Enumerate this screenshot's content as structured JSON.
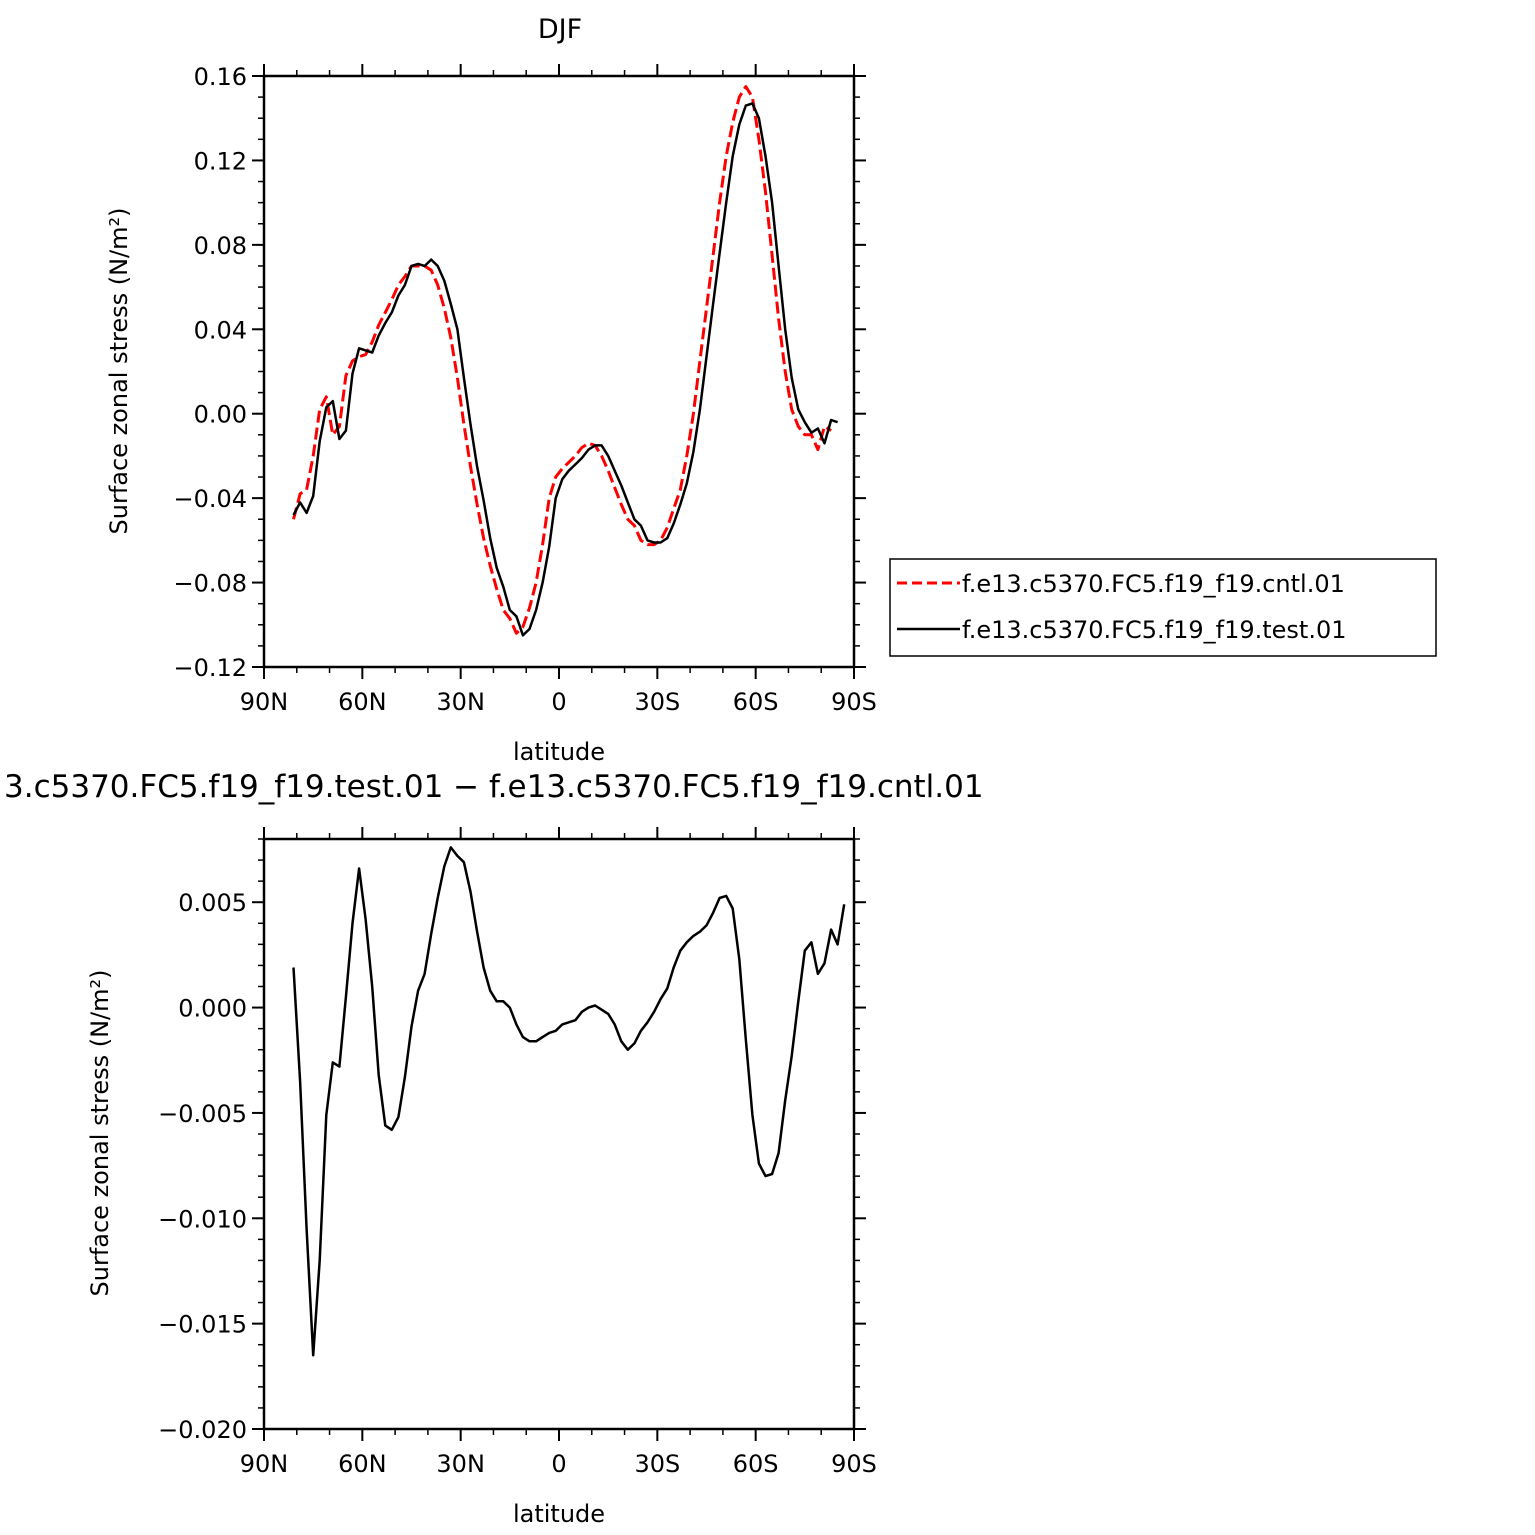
{
  "chart_data": [
    {
      "type": "line",
      "title": "DJF",
      "xlabel": "latitude",
      "ylabel": "Surface zonal stress (N/m²)",
      "xlim": [
        90,
        -90
      ],
      "ylim": [
        -0.12,
        0.16
      ],
      "x_ticks": [
        90,
        60,
        30,
        0,
        -30,
        -60,
        -90
      ],
      "x_tick_labels": [
        "90N",
        "60N",
        "30N",
        "0",
        "30S",
        "60S",
        "90S"
      ],
      "y_ticks": [
        -0.12,
        -0.08,
        -0.04,
        0.0,
        0.04,
        0.08,
        0.12,
        0.16
      ],
      "y_tick_labels": [
        "−0.12",
        "−0.08",
        "−0.04",
        "0.00",
        "0.04",
        "0.08",
        "0.12",
        "0.16"
      ],
      "legend_position": "right",
      "series": [
        {
          "name": "f.e13.c5370.FC5.f19_f19.cntl.01",
          "color": "#ff0000",
          "dash": "dashed",
          "points": [
            [
              81,
              -0.05
            ],
            [
              79,
              -0.038
            ],
            [
              77,
              -0.036
            ],
            [
              75,
              -0.02
            ],
            [
              73,
              0.002
            ],
            [
              71,
              0.008
            ],
            [
              69,
              -0.01
            ],
            [
              67,
              -0.006
            ],
            [
              65,
              0.018
            ],
            [
              63,
              0.025
            ],
            [
              61,
              0.027
            ],
            [
              59,
              0.028
            ],
            [
              57,
              0.034
            ],
            [
              55,
              0.042
            ],
            [
              53,
              0.048
            ],
            [
              51,
              0.054
            ],
            [
              49,
              0.061
            ],
            [
              47,
              0.065
            ],
            [
              45,
              0.07
            ],
            [
              43,
              0.07
            ],
            [
              41,
              0.07
            ],
            [
              39,
              0.068
            ],
            [
              37,
              0.061
            ],
            [
              35,
              0.05
            ],
            [
              33,
              0.036
            ],
            [
              31,
              0.017
            ],
            [
              29,
              -0.005
            ],
            [
              27,
              -0.025
            ],
            [
              25,
              -0.043
            ],
            [
              23,
              -0.059
            ],
            [
              21,
              -0.072
            ],
            [
              19,
              -0.083
            ],
            [
              17,
              -0.093
            ],
            [
              15,
              -0.097
            ],
            [
              13,
              -0.104
            ],
            [
              11,
              -0.101
            ],
            [
              9,
              -0.092
            ],
            [
              7,
              -0.08
            ],
            [
              5,
              -0.062
            ],
            [
              3,
              -0.04
            ],
            [
              1,
              -0.03
            ],
            [
              -1,
              -0.026
            ],
            [
              -3,
              -0.023
            ],
            [
              -5,
              -0.02
            ],
            [
              -7,
              -0.016
            ],
            [
              -9,
              -0.014
            ],
            [
              -11,
              -0.015
            ],
            [
              -13,
              -0.02
            ],
            [
              -15,
              -0.027
            ],
            [
              -17,
              -0.035
            ],
            [
              -19,
              -0.043
            ],
            [
              -21,
              -0.05
            ],
            [
              -23,
              -0.053
            ],
            [
              -25,
              -0.06
            ],
            [
              -27,
              -0.062
            ],
            [
              -29,
              -0.062
            ],
            [
              -31,
              -0.06
            ],
            [
              -33,
              -0.054
            ],
            [
              -35,
              -0.045
            ],
            [
              -37,
              -0.036
            ],
            [
              -39,
              -0.02
            ],
            [
              -41,
              0.0
            ],
            [
              -43,
              0.025
            ],
            [
              -45,
              0.05
            ],
            [
              -47,
              0.075
            ],
            [
              -49,
              0.1
            ],
            [
              -51,
              0.122
            ],
            [
              -53,
              0.138
            ],
            [
              -55,
              0.15
            ],
            [
              -57,
              0.155
            ],
            [
              -59,
              0.15
            ],
            [
              -61,
              0.13
            ],
            [
              -63,
              0.105
            ],
            [
              -65,
              0.075
            ],
            [
              -67,
              0.045
            ],
            [
              -69,
              0.02
            ],
            [
              -71,
              0.002
            ],
            [
              -73,
              -0.006
            ],
            [
              -75,
              -0.01
            ],
            [
              -77,
              -0.01
            ],
            [
              -79,
              -0.017
            ],
            [
              -81,
              -0.006
            ],
            [
              -83,
              -0.008
            ]
          ]
        },
        {
          "name": "f.e13.c5370.FC5.f19_f19.test.01",
          "color": "#000000",
          "dash": "solid",
          "points": [
            [
              81,
              -0.048
            ],
            [
              79,
              -0.042
            ],
            [
              77,
              -0.047
            ],
            [
              75,
              -0.039
            ],
            [
              73,
              -0.013
            ],
            [
              71,
              0.003
            ],
            [
              69,
              0.006
            ],
            [
              67,
              -0.012
            ],
            [
              65,
              -0.008
            ],
            [
              63,
              0.019
            ],
            [
              61,
              0.031
            ],
            [
              59,
              0.03
            ],
            [
              57,
              0.029
            ],
            [
              55,
              0.037
            ],
            [
              53,
              0.043
            ],
            [
              51,
              0.048
            ],
            [
              49,
              0.056
            ],
            [
              47,
              0.061
            ],
            [
              45,
              0.07
            ],
            [
              43,
              0.071
            ],
            [
              41,
              0.07
            ],
            [
              39,
              0.073
            ],
            [
              37,
              0.07
            ],
            [
              35,
              0.063
            ],
            [
              33,
              0.052
            ],
            [
              31,
              0.04
            ],
            [
              29,
              0.017
            ],
            [
              27,
              -0.005
            ],
            [
              25,
              -0.025
            ],
            [
              23,
              -0.041
            ],
            [
              21,
              -0.059
            ],
            [
              19,
              -0.073
            ],
            [
              17,
              -0.082
            ],
            [
              15,
              -0.093
            ],
            [
              13,
              -0.096
            ],
            [
              11,
              -0.105
            ],
            [
              9,
              -0.102
            ],
            [
              7,
              -0.093
            ],
            [
              5,
              -0.08
            ],
            [
              3,
              -0.063
            ],
            [
              1,
              -0.04
            ],
            [
              -1,
              -0.031
            ],
            [
              -3,
              -0.027
            ],
            [
              -5,
              -0.024
            ],
            [
              -7,
              -0.021
            ],
            [
              -9,
              -0.017
            ],
            [
              -11,
              -0.015
            ],
            [
              -13,
              -0.015
            ],
            [
              -15,
              -0.02
            ],
            [
              -17,
              -0.027
            ],
            [
              -19,
              -0.034
            ],
            [
              -21,
              -0.042
            ],
            [
              -23,
              -0.05
            ],
            [
              -25,
              -0.053
            ],
            [
              -27,
              -0.06
            ],
            [
              -29,
              -0.061
            ],
            [
              -31,
              -0.061
            ],
            [
              -33,
              -0.059
            ],
            [
              -35,
              -0.052
            ],
            [
              -37,
              -0.043
            ],
            [
              -39,
              -0.033
            ],
            [
              -41,
              -0.018
            ],
            [
              -43,
              0.002
            ],
            [
              -45,
              0.027
            ],
            [
              -47,
              0.052
            ],
            [
              -49,
              0.076
            ],
            [
              -51,
              0.1
            ],
            [
              -53,
              0.122
            ],
            [
              -55,
              0.137
            ],
            [
              -57,
              0.146
            ],
            [
              -59,
              0.147
            ],
            [
              -61,
              0.14
            ],
            [
              -63,
              0.122
            ],
            [
              -65,
              0.1
            ],
            [
              -67,
              0.07
            ],
            [
              -69,
              0.04
            ],
            [
              -71,
              0.017
            ],
            [
              -73,
              0.002
            ],
            [
              -75,
              -0.004
            ],
            [
              -77,
              -0.009
            ],
            [
              -79,
              -0.007
            ],
            [
              -81,
              -0.014
            ],
            [
              -83,
              -0.003
            ],
            [
              -85,
              -0.004
            ]
          ]
        }
      ]
    },
    {
      "type": "line",
      "title": "3.c5370.FC5.f19_f19.test.01  −  f.e13.c5370.FC5.f19_f19.cntl.01",
      "xlabel": "latitude",
      "ylabel": "Surface zonal stress (N/m²)",
      "xlim": [
        90,
        -90
      ],
      "ylim": [
        -0.02,
        0.008
      ],
      "x_ticks": [
        90,
        60,
        30,
        0,
        -30,
        -60,
        -90
      ],
      "x_tick_labels": [
        "90N",
        "60N",
        "30N",
        "0",
        "30S",
        "60S",
        "90S"
      ],
      "y_ticks": [
        -0.02,
        -0.015,
        -0.01,
        -0.005,
        0.0,
        0.005
      ],
      "y_tick_labels": [
        "−0.020",
        "−0.015",
        "−0.010",
        "−0.005",
        "0.000",
        "0.005"
      ],
      "series": [
        {
          "color": "#000000",
          "dash": "solid",
          "points": [
            [
              81,
              0.0019
            ],
            [
              79,
              -0.0035
            ],
            [
              77,
              -0.0105
            ],
            [
              75,
              -0.0165
            ],
            [
              73,
              -0.012
            ],
            [
              71,
              -0.0051
            ],
            [
              69,
              -0.0026
            ],
            [
              67,
              -0.0028
            ],
            [
              65,
              0.0005
            ],
            [
              63,
              0.004
            ],
            [
              61,
              0.0066
            ],
            [
              59,
              0.0042
            ],
            [
              57,
              0.001
            ],
            [
              55,
              -0.0032
            ],
            [
              53,
              -0.0056
            ],
            [
              51,
              -0.0058
            ],
            [
              49,
              -0.0052
            ],
            [
              47,
              -0.0033
            ],
            [
              45,
              -0.0009
            ],
            [
              43,
              0.0008
            ],
            [
              41,
              0.0016
            ],
            [
              39,
              0.0035
            ],
            [
              37,
              0.0052
            ],
            [
              35,
              0.0067
            ],
            [
              33,
              0.0076
            ],
            [
              31,
              0.0072
            ],
            [
              29,
              0.0069
            ],
            [
              27,
              0.0055
            ],
            [
              25,
              0.0036
            ],
            [
              23,
              0.0019
            ],
            [
              21,
              0.0008
            ],
            [
              19,
              0.0003
            ],
            [
              17,
              0.0003
            ],
            [
              15,
              0.0
            ],
            [
              13,
              -0.0008
            ],
            [
              11,
              -0.0014
            ],
            [
              9,
              -0.0016
            ],
            [
              7,
              -0.0016
            ],
            [
              5,
              -0.0014
            ],
            [
              3,
              -0.0012
            ],
            [
              1,
              -0.0011
            ],
            [
              -1,
              -0.0008
            ],
            [
              -3,
              -0.0007
            ],
            [
              -5,
              -0.0006
            ],
            [
              -7,
              -0.0002
            ],
            [
              -9,
              0.0
            ],
            [
              -11,
              0.0001
            ],
            [
              -13,
              -0.0001
            ],
            [
              -15,
              -0.0003
            ],
            [
              -17,
              -0.0008
            ],
            [
              -19,
              -0.0016
            ],
            [
              -21,
              -0.002
            ],
            [
              -23,
              -0.0017
            ],
            [
              -25,
              -0.0011
            ],
            [
              -27,
              -0.0007
            ],
            [
              -29,
              -0.0002
            ],
            [
              -31,
              0.0004
            ],
            [
              -33,
              0.0009
            ],
            [
              -35,
              0.0019
            ],
            [
              -37,
              0.0027
            ],
            [
              -39,
              0.0031
            ],
            [
              -41,
              0.0034
            ],
            [
              -43,
              0.0036
            ],
            [
              -45,
              0.0039
            ],
            [
              -47,
              0.0045
            ],
            [
              -49,
              0.0052
            ],
            [
              -51,
              0.0053
            ],
            [
              -53,
              0.0047
            ],
            [
              -55,
              0.0023
            ],
            [
              -57,
              -0.0015
            ],
            [
              -59,
              -0.0051
            ],
            [
              -61,
              -0.0074
            ],
            [
              -63,
              -0.008
            ],
            [
              -65,
              -0.0079
            ],
            [
              -67,
              -0.0069
            ],
            [
              -69,
              -0.0044
            ],
            [
              -71,
              -0.0023
            ],
            [
              -73,
              0.0003
            ],
            [
              -75,
              0.0027
            ],
            [
              -77,
              0.0031
            ],
            [
              -79,
              0.0016
            ],
            [
              -81,
              0.0021
            ],
            [
              -83,
              0.0037
            ],
            [
              -85,
              0.003
            ],
            [
              -87,
              0.0049
            ]
          ]
        }
      ]
    }
  ]
}
